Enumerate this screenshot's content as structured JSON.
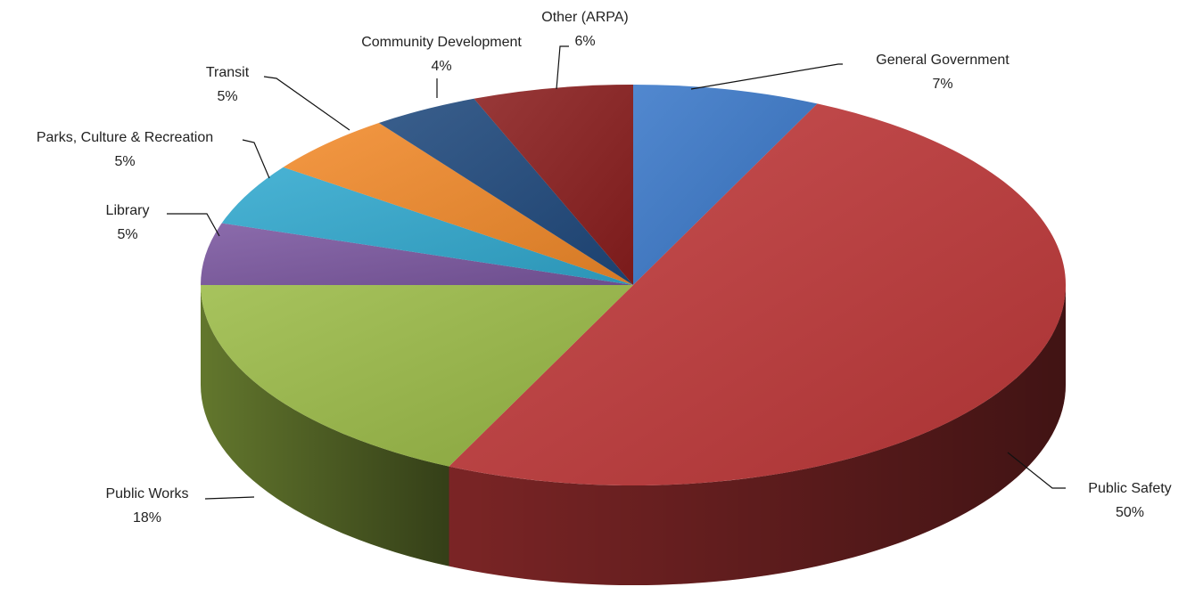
{
  "chart_data": {
    "type": "pie3d",
    "categories": [
      "General Government",
      "Public Safety",
      "Public Works",
      "Library",
      "Parks, Culture & Recreation",
      "Transit",
      "Community Development",
      "Other (ARPA)"
    ],
    "values": [
      7,
      50,
      18,
      5,
      5,
      5,
      4,
      6
    ],
    "value_labels": [
      "7%",
      "50%",
      "18%",
      "5%",
      "5%",
      "5%",
      "4%",
      "6%"
    ],
    "colors": [
      "#3a78c9",
      "#c0393a",
      "#9bbb47",
      "#7b57a0",
      "#31a9cf",
      "#f28a2a",
      "#1f497d",
      "#8b1e1e"
    ]
  }
}
